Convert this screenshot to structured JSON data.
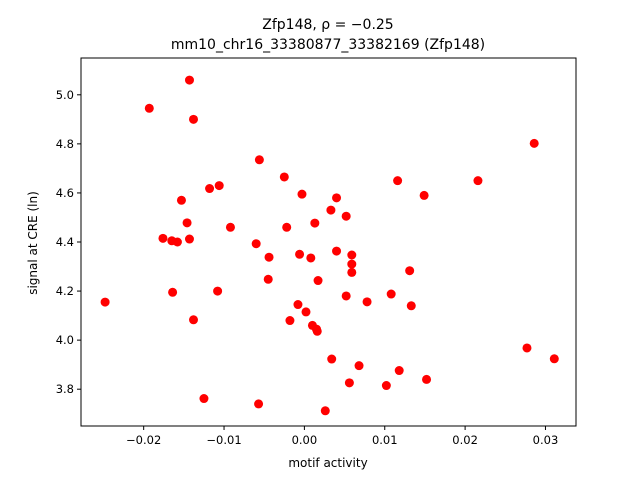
{
  "chart_data": {
    "type": "scatter",
    "title_line1": "Zfp148, ρ = −0.25",
    "title_line2": "mm10_chr16_33380877_33382169 (Zfp148)",
    "xlabel": "motif activity",
    "ylabel": "signal at CRE (ln)",
    "xlim": [
      -0.0278,
      0.0338
    ],
    "ylim": [
      3.65,
      5.15
    ],
    "x_ticks": [
      -0.02,
      -0.01,
      0.0,
      0.01,
      0.02,
      0.03
    ],
    "x_tick_labels": [
      "−0.02",
      "−0.01",
      "0.00",
      "0.01",
      "0.02",
      "0.03"
    ],
    "y_ticks": [
      3.8,
      4.0,
      4.2,
      4.4,
      4.6,
      4.8,
      5.0
    ],
    "y_tick_labels": [
      "3.8",
      "4.0",
      "4.2",
      "4.4",
      "4.6",
      "4.8",
      "5.0"
    ],
    "grid": false,
    "marker_color": "#ff0000",
    "points": [
      {
        "x": -0.0248,
        "y": 4.155
      },
      {
        "x": -0.0193,
        "y": 4.945
      },
      {
        "x": -0.0143,
        "y": 5.06
      },
      {
        "x": -0.0138,
        "y": 4.9
      },
      {
        "x": -0.0176,
        "y": 4.415
      },
      {
        "x": -0.0165,
        "y": 4.405
      },
      {
        "x": -0.0158,
        "y": 4.4
      },
      {
        "x": -0.0164,
        "y": 4.195
      },
      {
        "x": -0.0153,
        "y": 4.57
      },
      {
        "x": -0.0146,
        "y": 4.478
      },
      {
        "x": -0.0143,
        "y": 4.412
      },
      {
        "x": -0.0138,
        "y": 4.083
      },
      {
        "x": -0.0118,
        "y": 4.618
      },
      {
        "x": -0.0125,
        "y": 3.762
      },
      {
        "x": -0.0106,
        "y": 4.63
      },
      {
        "x": -0.0108,
        "y": 4.2
      },
      {
        "x": -0.0092,
        "y": 4.46
      },
      {
        "x": -0.0056,
        "y": 4.735
      },
      {
        "x": -0.006,
        "y": 4.393
      },
      {
        "x": -0.0044,
        "y": 4.338
      },
      {
        "x": -0.0045,
        "y": 4.248
      },
      {
        "x": -0.0057,
        "y": 3.74
      },
      {
        "x": -0.0025,
        "y": 4.665
      },
      {
        "x": -0.0022,
        "y": 4.46
      },
      {
        "x": -0.0018,
        "y": 4.08
      },
      {
        "x": -0.0008,
        "y": 4.145
      },
      {
        "x": -0.0006,
        "y": 4.35
      },
      {
        "x": -0.0003,
        "y": 4.595
      },
      {
        "x": 0.0002,
        "y": 4.115
      },
      {
        "x": 0.0008,
        "y": 4.335
      },
      {
        "x": 0.001,
        "y": 4.06
      },
      {
        "x": 0.0013,
        "y": 4.477
      },
      {
        "x": 0.0015,
        "y": 4.045
      },
      {
        "x": 0.0016,
        "y": 4.036
      },
      {
        "x": 0.0017,
        "y": 4.243
      },
      {
        "x": 0.0026,
        "y": 3.712
      },
      {
        "x": 0.0033,
        "y": 4.53
      },
      {
        "x": 0.0034,
        "y": 3.923
      },
      {
        "x": 0.004,
        "y": 4.58
      },
      {
        "x": 0.004,
        "y": 4.363
      },
      {
        "x": 0.0052,
        "y": 4.505
      },
      {
        "x": 0.0052,
        "y": 4.18
      },
      {
        "x": 0.0056,
        "y": 3.826
      },
      {
        "x": 0.0059,
        "y": 4.347
      },
      {
        "x": 0.0059,
        "y": 4.31
      },
      {
        "x": 0.0059,
        "y": 4.276
      },
      {
        "x": 0.0068,
        "y": 3.896
      },
      {
        "x": 0.0078,
        "y": 4.156
      },
      {
        "x": 0.0102,
        "y": 3.815
      },
      {
        "x": 0.0108,
        "y": 4.188
      },
      {
        "x": 0.0116,
        "y": 4.65
      },
      {
        "x": 0.0118,
        "y": 3.876
      },
      {
        "x": 0.0131,
        "y": 4.283
      },
      {
        "x": 0.0133,
        "y": 4.14
      },
      {
        "x": 0.0149,
        "y": 4.59
      },
      {
        "x": 0.0152,
        "y": 3.84
      },
      {
        "x": 0.0216,
        "y": 4.65
      },
      {
        "x": 0.0277,
        "y": 3.968
      },
      {
        "x": 0.0286,
        "y": 4.802
      },
      {
        "x": 0.0311,
        "y": 3.924
      }
    ]
  }
}
